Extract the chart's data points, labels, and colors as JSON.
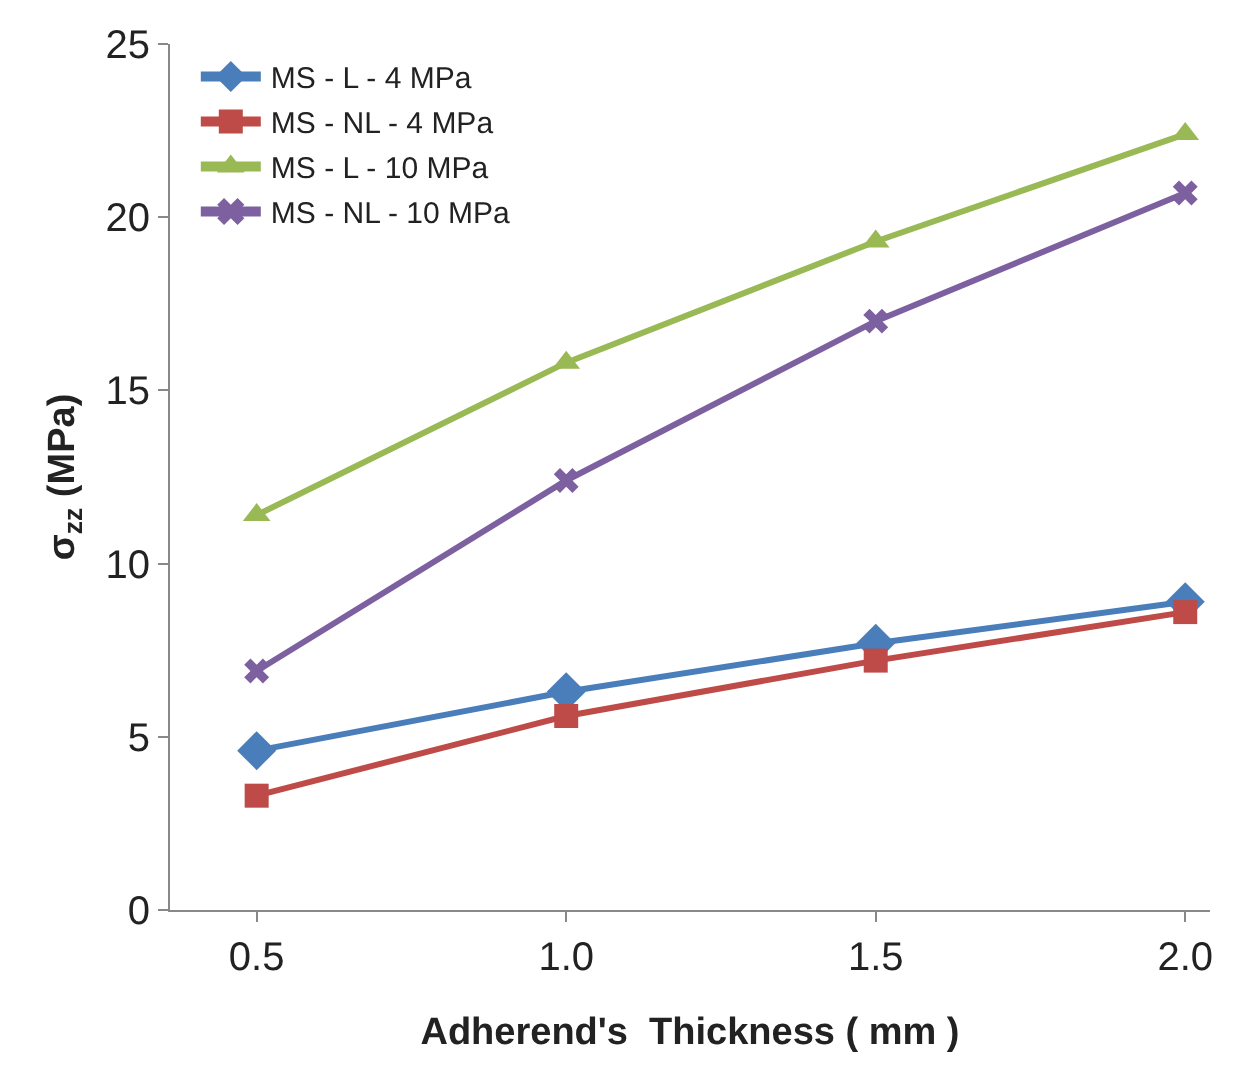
{
  "chart_data": {
    "type": "line",
    "xlabel": "Adherend's  Thickness ( mm )",
    "ylabel": "σ$_{zz}$ (MPa)",
    "categories": [
      "0.5",
      "1.0",
      "1.5",
      "2.0"
    ],
    "series": [
      {
        "name": "MS - L - 4 MPa",
        "color": "#4a7ebb",
        "marker": "diamond",
        "values": [
          4.6,
          6.3,
          7.7,
          8.9
        ]
      },
      {
        "name": "MS - NL - 4 MPa",
        "color": "#be4b48",
        "marker": "square",
        "values": [
          3.3,
          5.6,
          7.2,
          8.6
        ]
      },
      {
        "name": "MS - L - 10 MPa",
        "color": "#98b954",
        "marker": "triangle",
        "values": [
          11.4,
          15.8,
          19.3,
          22.4
        ]
      },
      {
        "name": "MS - NL - 10 MPa",
        "color": "#7d60a0",
        "marker": "cross",
        "values": [
          6.9,
          12.4,
          17.0,
          20.7
        ]
      }
    ],
    "ylim": [
      0,
      25
    ],
    "yticks": [
      0,
      5,
      10,
      15,
      20,
      25
    ],
    "grid": false,
    "legend": "top left",
    "line_style": "solid"
  }
}
